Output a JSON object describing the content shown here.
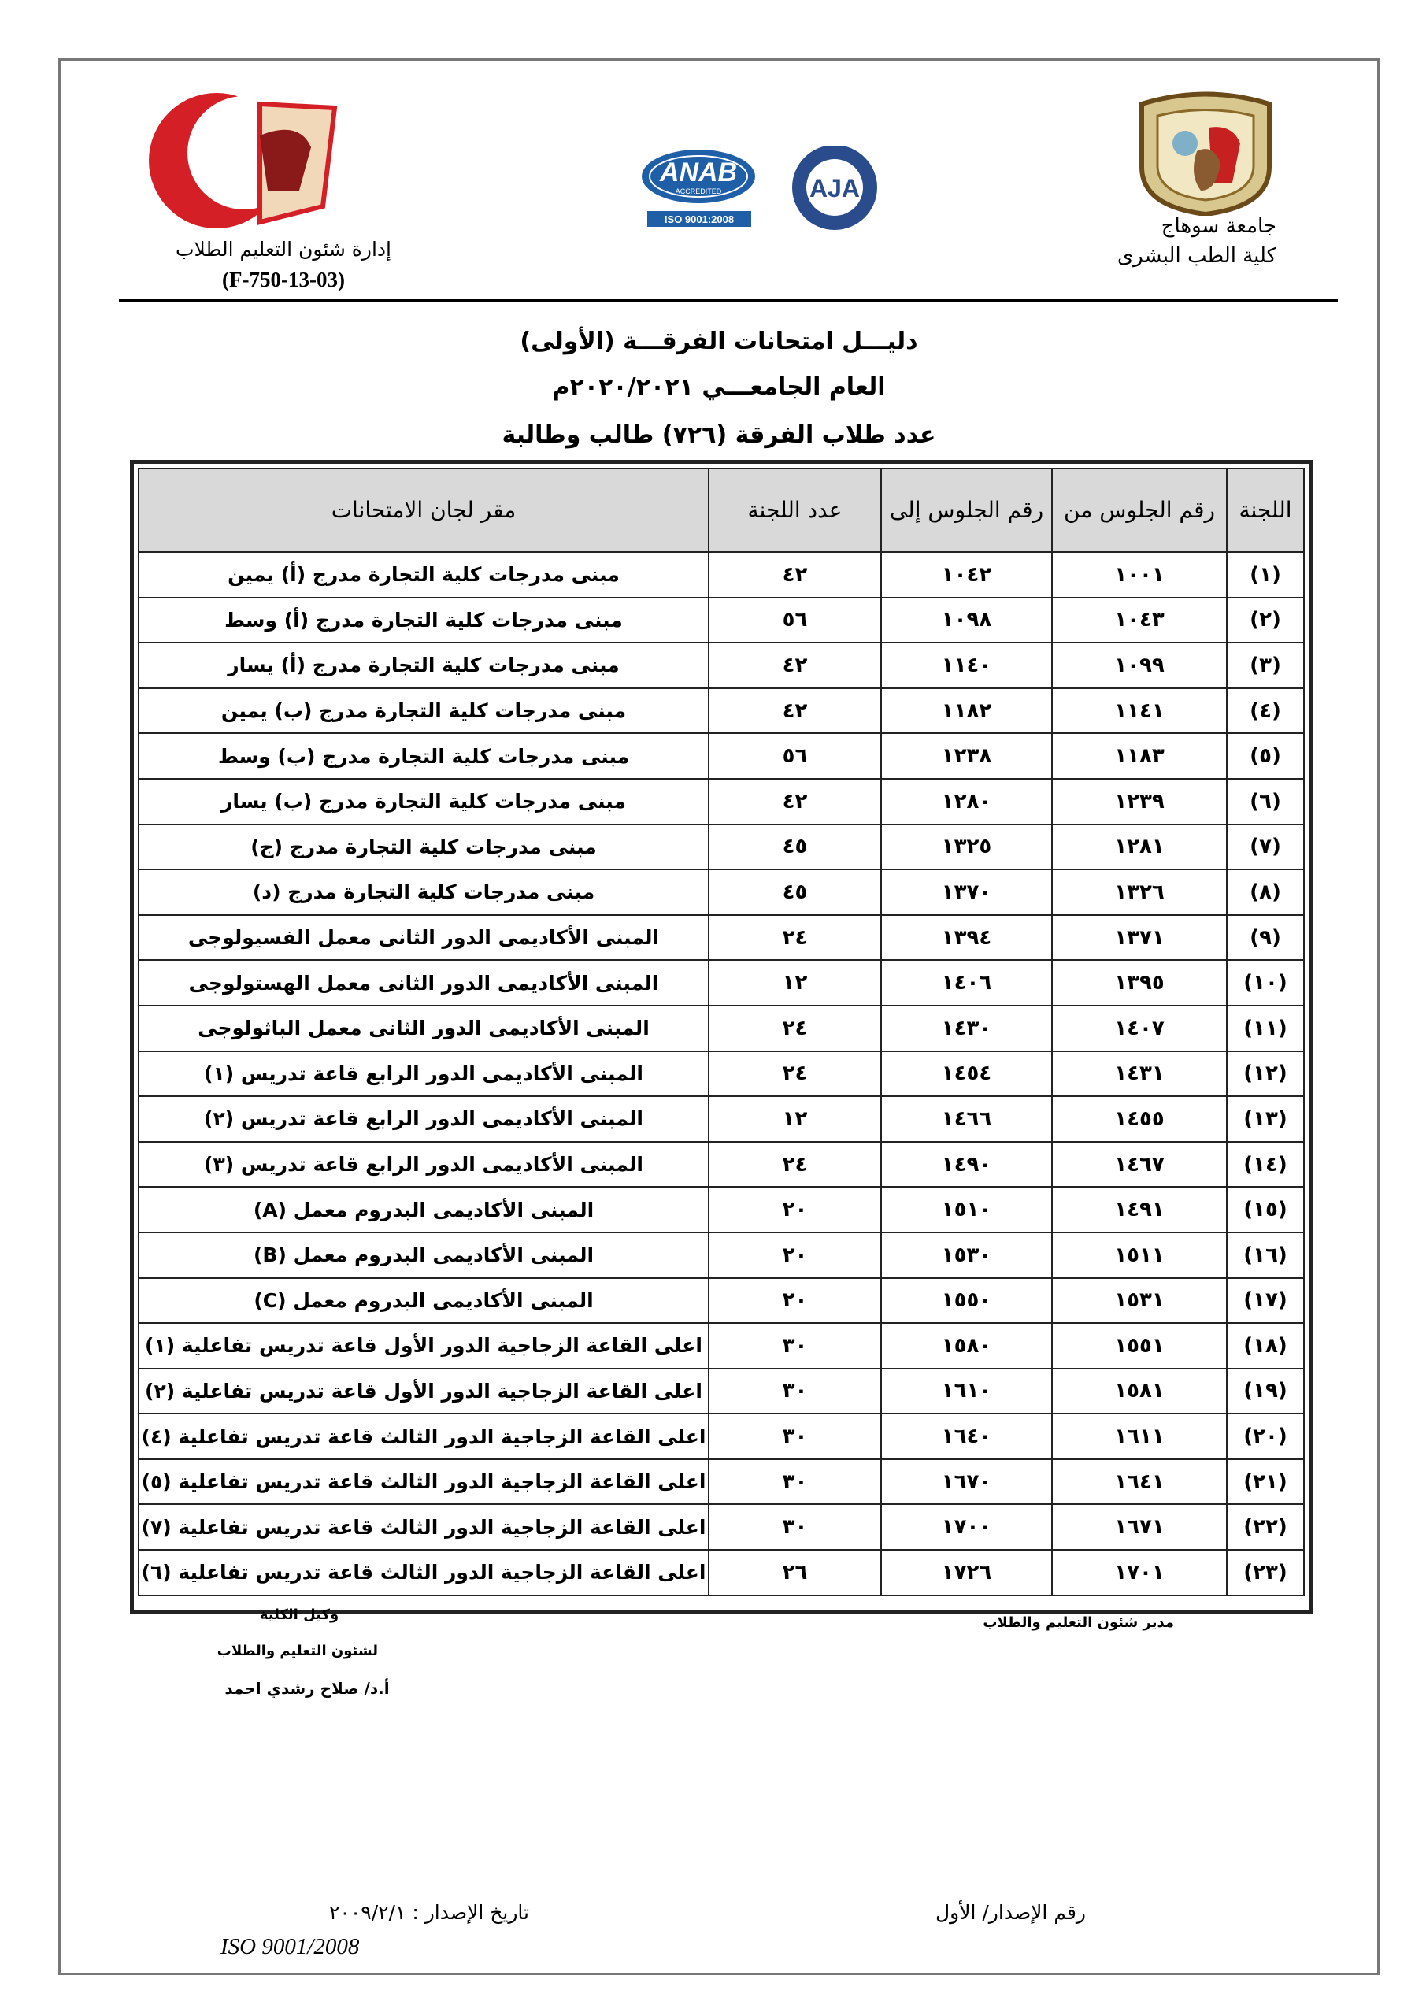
{
  "header": {
    "right": {
      "university": "جامعة سوهاج",
      "faculty": "كلية الطب البشرى"
    },
    "left": {
      "department": "إدارة شئون التعليم الطلاب",
      "code": "(F-750-13-03)"
    },
    "logos": {
      "anab": "ANAB",
      "accredited": "ACCREDITED",
      "iso": "ISO 9001:2008",
      "aja": "AJA"
    }
  },
  "titles": [
    "دليـــل امتحانات الفرقـــة (الأولى)",
    "العام الجامعـــي ٢٠٢٠/٢٠٢١م",
    "عدد طلاب الفرقة (٧٢٦) طالب وطالبة"
  ],
  "table": {
    "header": [
      "اللجنة",
      "رقم الجلوس من",
      "رقم الجلوس إلى",
      "عدد اللجنة",
      "مقر لجان الامتحانات"
    ],
    "rows": [
      [
        "(١)",
        "١٠٠١",
        "١٠٤٢",
        "٤٢",
        "مبنى مدرجات كلية التجارة مدرج (أ) يمين"
      ],
      [
        "(٢)",
        "١٠٤٣",
        "١٠٩٨",
        "٥٦",
        "مبنى مدرجات كلية التجارة مدرج (أ) وسط"
      ],
      [
        "(٣)",
        "١٠٩٩",
        "١١٤٠",
        "٤٢",
        "مبنى مدرجات كلية التجارة مدرج (أ) يسار"
      ],
      [
        "(٤)",
        "١١٤١",
        "١١٨٢",
        "٤٢",
        "مبنى مدرجات كلية التجارة مدرج (ب) يمين"
      ],
      [
        "(٥)",
        "١١٨٣",
        "١٢٣٨",
        "٥٦",
        "مبنى مدرجات كلية التجارة مدرج (ب) وسط"
      ],
      [
        "(٦)",
        "١٢٣٩",
        "١٢٨٠",
        "٤٢",
        "مبنى مدرجات كلية التجارة مدرج (ب) يسار"
      ],
      [
        "(٧)",
        "١٢٨١",
        "١٣٢٥",
        "٤٥",
        "مبنى مدرجات كلية التجارة مدرج (ج)"
      ],
      [
        "(٨)",
        "١٣٢٦",
        "١٣٧٠",
        "٤٥",
        "مبنى مدرجات كلية التجارة مدرج (د)"
      ],
      [
        "(٩)",
        "١٣٧١",
        "١٣٩٤",
        "٢٤",
        "المبنى الأكاديمى الدور الثانى معمل الفسيولوجى"
      ],
      [
        "(١٠)",
        "١٣٩٥",
        "١٤٠٦",
        "١٢",
        "المبنى الأكاديمى الدور الثانى معمل الهستولوجى"
      ],
      [
        "(١١)",
        "١٤٠٧",
        "١٤٣٠",
        "٢٤",
        "المبنى الأكاديمى الدور الثانى معمل الباثولوجى"
      ],
      [
        "(١٢)",
        "١٤٣١",
        "١٤٥٤",
        "٢٤",
        "المبنى الأكاديمى الدور الرابع قاعة تدريس (١)"
      ],
      [
        "(١٣)",
        "١٤٥٥",
        "١٤٦٦",
        "١٢",
        "المبنى الأكاديمى الدور الرابع قاعة تدريس (٢)"
      ],
      [
        "(١٤)",
        "١٤٦٧",
        "١٤٩٠",
        "٢٤",
        "المبنى الأكاديمى الدور الرابع قاعة تدريس (٣)"
      ],
      [
        "(١٥)",
        "١٤٩١",
        "١٥١٠",
        "٢٠",
        "المبنى الأكاديمى البدروم معمل (A)"
      ],
      [
        "(١٦)",
        "١٥١١",
        "١٥٣٠",
        "٢٠",
        "المبنى الأكاديمى البدروم معمل (B)"
      ],
      [
        "(١٧)",
        "١٥٣١",
        "١٥٥٠",
        "٢٠",
        "المبنى الأكاديمى البدروم معمل (C)"
      ],
      [
        "(١٨)",
        "١٥٥١",
        "١٥٨٠",
        "٣٠",
        "اعلى القاعة الزجاجية الدور الأول قاعة تدريس تفاعلية (١)"
      ],
      [
        "(١٩)",
        "١٥٨١",
        "١٦١٠",
        "٣٠",
        "اعلى القاعة الزجاجية الدور الأول قاعة تدريس تفاعلية (٢)"
      ],
      [
        "(٢٠)",
        "١٦١١",
        "١٦٤٠",
        "٣٠",
        "اعلى القاعة الزجاجية الدور الثالث قاعة تدريس تفاعلية (٤)"
      ],
      [
        "(٢١)",
        "١٦٤١",
        "١٦٧٠",
        "٣٠",
        "اعلى القاعة الزجاجية الدور الثالث قاعة تدريس تفاعلية (٥)"
      ],
      [
        "(٢٢)",
        "١٦٧١",
        "١٧٠٠",
        "٣٠",
        "اعلى القاعة الزجاجية الدور الثالث قاعة تدريس تفاعلية (٧)"
      ],
      [
        "(٢٣)",
        "١٧٠١",
        "١٧٢٦",
        "٢٦",
        "اعلى القاعة الزجاجية الدور الثالث قاعة تدريس تفاعلية (٦)"
      ]
    ]
  },
  "signatures": {
    "right": "مدير شئون التعليم والطلاب",
    "left": [
      "وكيل الكلية",
      "لشئون التعليم والطلاب",
      "أ.د/ صلاح رشدي احمد"
    ]
  },
  "footer": {
    "edition": "رقم الإصدار/ الأول",
    "date": "تاريخ الإصدار : ٢٠٠٩/٢/١",
    "iso": "ISO 9001/2008"
  }
}
